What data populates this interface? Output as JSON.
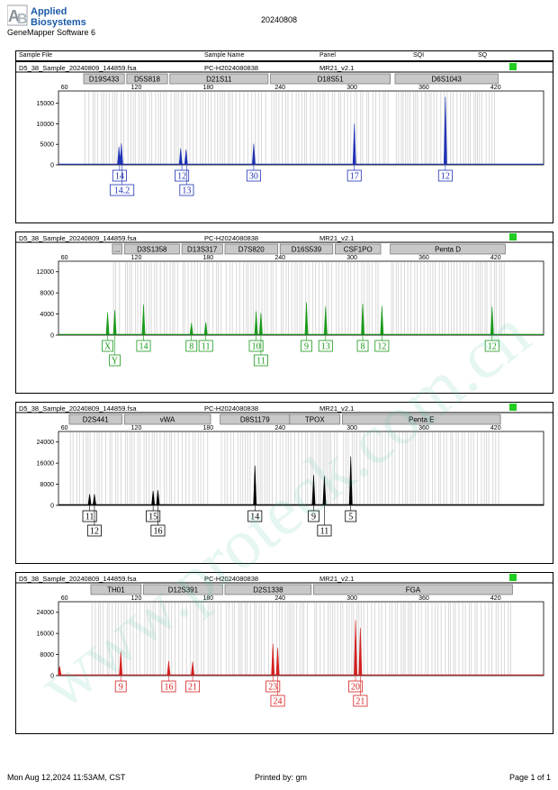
{
  "header": {
    "logo_line1": "Applied",
    "logo_line2": "Biosystems",
    "software": "GeneMapper Software 6",
    "title": "20240808"
  },
  "columns": [
    "Sample File",
    "Sample Name",
    "Panel",
    "SQI",
    "SQ"
  ],
  "watermark": "www.proteck.com.cn",
  "footer": {
    "datetime": "Mon Aug 12,2024 11:53AM, CST",
    "printed_by": "Printed by: gm",
    "page": "Page 1 of 1"
  },
  "colors": {
    "blue": "#1f33b5",
    "green": "#1a9a1a",
    "black": "#000000",
    "red": "#d42020",
    "status": "#22cc22",
    "bins": "#d8d8d8"
  },
  "chart_data": [
    {
      "type": "line",
      "dye": "blue",
      "sample_file": "D5_38_Sample_20240809_144859.fsa",
      "sample_name": "PC-H2024080838",
      "panel": "MR21_v2.1",
      "x_ticks": [
        60,
        120,
        180,
        240,
        300,
        360,
        420
      ],
      "xlim": [
        55,
        460
      ],
      "y_ticks": [
        0,
        5000,
        10000,
        15000
      ],
      "ylim": [
        0,
        18000
      ],
      "loci": [
        {
          "name": "D19S433",
          "start": 76,
          "end": 110
        },
        {
          "name": "D5S818",
          "start": 112,
          "end": 146
        },
        {
          "name": "D21S11",
          "start": 148,
          "end": 230
        },
        {
          "name": "D18S51",
          "start": 232,
          "end": 332
        },
        {
          "name": "D6S1043",
          "start": 336,
          "end": 422
        }
      ],
      "peaks": [
        {
          "size": 105.5,
          "height": 4400
        },
        {
          "size": 107.5,
          "height": 5200
        },
        {
          "size": 157,
          "height": 4000
        },
        {
          "size": 161.5,
          "height": 3700
        },
        {
          "size": 218,
          "height": 5100
        },
        {
          "size": 302,
          "height": 10000
        },
        {
          "size": 378,
          "height": 16500
        }
      ],
      "alleles": [
        {
          "label": "14",
          "size": 106,
          "row": 0
        },
        {
          "label": "14.2",
          "size": 108,
          "row": 1
        },
        {
          "label": "12",
          "size": 158,
          "row": 0
        },
        {
          "label": "13",
          "size": 162,
          "row": 1
        },
        {
          "label": "30",
          "size": 218,
          "row": 0
        },
        {
          "label": "17",
          "size": 302,
          "row": 0
        },
        {
          "label": "12",
          "size": 378,
          "row": 0
        }
      ]
    },
    {
      "type": "line",
      "dye": "green",
      "sample_file": "D5_38_Sample_20240809_144859.fsa",
      "sample_name": "PC-H2024080838",
      "panel": "MR21_v2.1",
      "x_ticks": [
        60,
        120,
        180,
        240,
        300,
        360,
        420
      ],
      "xlim": [
        55,
        460
      ],
      "y_ticks": [
        0,
        4000,
        8000,
        12000
      ],
      "ylim": [
        0,
        14000
      ],
      "loci": [
        {
          "name": "...",
          "start": 100,
          "end": 108
        },
        {
          "name": "D3S1358",
          "start": 110,
          "end": 156
        },
        {
          "name": "D13S317",
          "start": 158,
          "end": 192
        },
        {
          "name": "D7S820",
          "start": 194,
          "end": 238
        },
        {
          "name": "D16S539",
          "start": 240,
          "end": 284
        },
        {
          "name": "CSF1PO",
          "start": 286,
          "end": 324
        },
        {
          "name": "Penta D",
          "start": 332,
          "end": 428
        }
      ],
      "peaks": [
        {
          "size": 96,
          "height": 4300
        },
        {
          "size": 102,
          "height": 4700
        },
        {
          "size": 126,
          "height": 5800
        },
        {
          "size": 166,
          "height": 2300
        },
        {
          "size": 178,
          "height": 2400
        },
        {
          "size": 220,
          "height": 4500
        },
        {
          "size": 224,
          "height": 4200
        },
        {
          "size": 262,
          "height": 6200
        },
        {
          "size": 278,
          "height": 5400
        },
        {
          "size": 309,
          "height": 5900
        },
        {
          "size": 325,
          "height": 5500
        },
        {
          "size": 417,
          "height": 5400
        }
      ],
      "alleles": [
        {
          "label": "X",
          "size": 96,
          "row": 0
        },
        {
          "label": "Y",
          "size": 102,
          "row": 1
        },
        {
          "label": "14",
          "size": 126,
          "row": 0
        },
        {
          "label": "8",
          "size": 166,
          "row": 0
        },
        {
          "label": "11",
          "size": 178,
          "row": 0
        },
        {
          "label": "10",
          "size": 220,
          "row": 0
        },
        {
          "label": "11",
          "size": 224,
          "row": 1
        },
        {
          "label": "9",
          "size": 262,
          "row": 0
        },
        {
          "label": "13",
          "size": 278,
          "row": 0
        },
        {
          "label": "8",
          "size": 309,
          "row": 0
        },
        {
          "label": "12",
          "size": 325,
          "row": 0
        },
        {
          "label": "12",
          "size": 417,
          "row": 0
        }
      ]
    },
    {
      "type": "line",
      "dye": "black",
      "sample_file": "D5_38_Sample_20240809_144859.fsa",
      "sample_name": "PC-H2024080838",
      "panel": "MR21_v2.1",
      "x_ticks": [
        60,
        120,
        180,
        240,
        300,
        360,
        420
      ],
      "xlim": [
        55,
        460
      ],
      "y_ticks": [
        0,
        8000,
        16000,
        24000
      ],
      "ylim": [
        0,
        28000
      ],
      "loci": [
        {
          "name": "D2S441",
          "start": 64,
          "end": 108
        },
        {
          "name": "vWA",
          "start": 110,
          "end": 182
        },
        {
          "name": "D8S1179",
          "start": 190,
          "end": 248
        },
        {
          "name": "TPOX",
          "start": 248,
          "end": 290
        },
        {
          "name": "Penta E",
          "start": 292,
          "end": 424
        }
      ],
      "peaks": [
        {
          "size": 81,
          "height": 4200
        },
        {
          "size": 85,
          "height": 4200
        },
        {
          "size": 134,
          "height": 5400
        },
        {
          "size": 138,
          "height": 5700
        },
        {
          "size": 219,
          "height": 15000
        },
        {
          "size": 268,
          "height": 11500
        },
        {
          "size": 277,
          "height": 11000
        },
        {
          "size": 299,
          "height": 18500
        }
      ],
      "alleles": [
        {
          "label": "11",
          "size": 81,
          "row": 0
        },
        {
          "label": "12",
          "size": 85,
          "row": 1
        },
        {
          "label": "15",
          "size": 134,
          "row": 0
        },
        {
          "label": "16",
          "size": 138,
          "row": 1
        },
        {
          "label": "14",
          "size": 219,
          "row": 0
        },
        {
          "label": "9",
          "size": 268,
          "row": 0
        },
        {
          "label": "11",
          "size": 277,
          "row": 1
        },
        {
          "label": "5",
          "size": 299,
          "row": 0
        }
      ]
    },
    {
      "type": "line",
      "dye": "red",
      "sample_file": "D5_38_Sample_20240809_144859.fsa",
      "sample_name": "PC-H2024080838",
      "panel": "MR21_v2.1",
      "x_ticks": [
        60,
        120,
        180,
        240,
        300,
        360,
        420
      ],
      "xlim": [
        55,
        460
      ],
      "y_ticks": [
        0,
        8000,
        16000,
        24000
      ],
      "ylim": [
        0,
        28000
      ],
      "loci": [
        {
          "name": "TH01",
          "start": 82,
          "end": 124
        },
        {
          "name": "D12S391",
          "start": 126,
          "end": 192
        },
        {
          "name": "D2S1338",
          "start": 194,
          "end": 266
        },
        {
          "name": "FGA",
          "start": 268,
          "end": 434
        }
      ],
      "peaks": [
        {
          "size": 56,
          "height": 3500
        },
        {
          "size": 107,
          "height": 9000
        },
        {
          "size": 147,
          "height": 5500
        },
        {
          "size": 167,
          "height": 5200
        },
        {
          "size": 234,
          "height": 12000
        },
        {
          "size": 238,
          "height": 10500
        },
        {
          "size": 303,
          "height": 21000
        },
        {
          "size": 307,
          "height": 18000
        }
      ],
      "alleles": [
        {
          "label": "9",
          "size": 107,
          "row": 0
        },
        {
          "label": "16",
          "size": 147,
          "row": 0
        },
        {
          "label": "21",
          "size": 167,
          "row": 0
        },
        {
          "label": "23",
          "size": 234,
          "row": 0
        },
        {
          "label": "24",
          "size": 238,
          "row": 1
        },
        {
          "label": "20",
          "size": 303,
          "row": 0
        },
        {
          "label": "21",
          "size": 307,
          "row": 1
        }
      ]
    }
  ]
}
